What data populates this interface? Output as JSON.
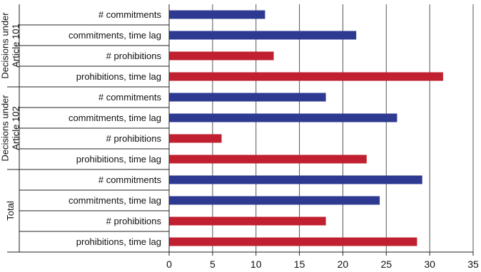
{
  "chart_data": {
    "type": "bar",
    "orientation": "horizontal",
    "groups": [
      {
        "label_lines": [
          "Decisions under",
          "Article 101"
        ],
        "categories": [
          "# commitments",
          "commitments, time lag",
          "# prohibitions",
          "prohibitions, time lag"
        ],
        "values": [
          11,
          21.5,
          12,
          31.5
        ]
      },
      {
        "label_lines": [
          "Decisions under",
          "Article 102"
        ],
        "categories": [
          "# commitments",
          "commitments, time lag",
          "# prohibitions",
          "prohibitions, time lag"
        ],
        "values": [
          18,
          26.2,
          6,
          22.7
        ]
      },
      {
        "label_lines": [
          "Total"
        ],
        "categories": [
          "# commitments",
          "commitments, time lag",
          "# prohibitions",
          "prohibitions, time lag"
        ],
        "values": [
          29.1,
          24.2,
          18,
          28.5
        ]
      }
    ],
    "bar_colors": {
      "commitments": "#2e3a91",
      "prohibitions": "#c0202f"
    },
    "xlim": [
      0,
      35
    ],
    "xticks": [
      0,
      5,
      10,
      15,
      20,
      25,
      30,
      35
    ],
    "grid": "vertical",
    "title": "",
    "xlabel": "",
    "ylabel": ""
  }
}
